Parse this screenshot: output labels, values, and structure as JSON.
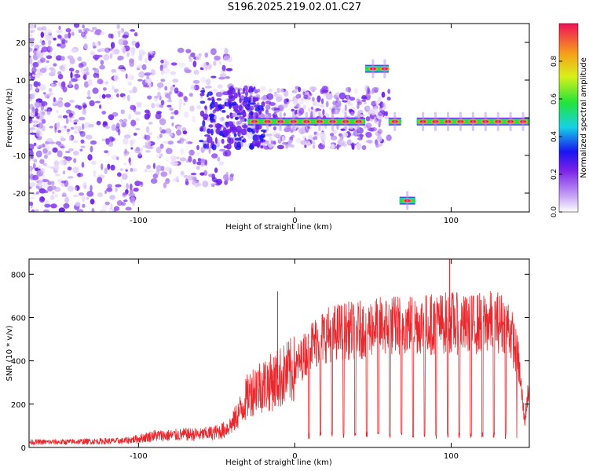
{
  "title": "S196.2025.219.02.01.C27",
  "chart_data": [
    {
      "type": "heatmap",
      "title": "S196.2025.219.02.01.C27",
      "xlabel": "Height of straight line (km)",
      "ylabel": "Frequency (Hz)",
      "xlim": [
        -170,
        150
      ],
      "ylim": [
        -25,
        25
      ],
      "xticks": [
        -100,
        0,
        100
      ],
      "yticks": [
        -20,
        -10,
        0,
        10,
        20
      ],
      "colorbar": {
        "label": "Normalized spectral amplitude",
        "range": [
          0,
          1
        ],
        "ticks": [
          "0.0",
          "0.2",
          "0.4",
          "0.6",
          "0.8"
        ]
      },
      "tone_segments": [
        {
          "x_start": -30,
          "x_end": 45,
          "freq": -1
        },
        {
          "x_start": 45,
          "x_end": 55,
          "freq": 13
        },
        {
          "x_start": 55,
          "x_end": 60,
          "freq": 13
        },
        {
          "x_start": 60,
          "x_end": 68,
          "freq": -1
        },
        {
          "x_start": 67,
          "x_end": 77,
          "freq": -22
        },
        {
          "x_start": 78,
          "x_end": 150,
          "freq": -1
        }
      ],
      "grid": false
    },
    {
      "type": "line",
      "xlabel": "Height of straight line (km)",
      "ylabel": "SNR (10 * v/v)",
      "xlim": [
        -170,
        150
      ],
      "ylim": [
        0,
        870
      ],
      "xticks": [
        -100,
        0,
        100
      ],
      "yticks": [
        0,
        200,
        400,
        600,
        800
      ],
      "series": [
        {
          "color": "#e8282d",
          "x": [
            -170,
            -150,
            -130,
            -110,
            -100,
            -90,
            -80,
            -70,
            -60,
            -50,
            -45,
            -40,
            -35,
            -30,
            -25,
            -20,
            -15,
            -10,
            -5,
            0,
            10,
            20,
            30,
            40,
            50,
            60,
            70,
            80,
            90,
            100,
            110,
            120,
            130,
            137,
            143,
            147,
            150
          ],
          "y": [
            25,
            25,
            28,
            30,
            40,
            55,
            55,
            60,
            60,
            70,
            80,
            110,
            170,
            240,
            280,
            290,
            300,
            320,
            340,
            360,
            470,
            520,
            540,
            540,
            560,
            560,
            570,
            570,
            570,
            580,
            560,
            580,
            580,
            560,
            400,
            120,
            300
          ]
        }
      ],
      "spikes": [
        {
          "x": -11,
          "y": 720
        },
        {
          "x": 99,
          "y": 870
        }
      ],
      "grid": false
    }
  ]
}
